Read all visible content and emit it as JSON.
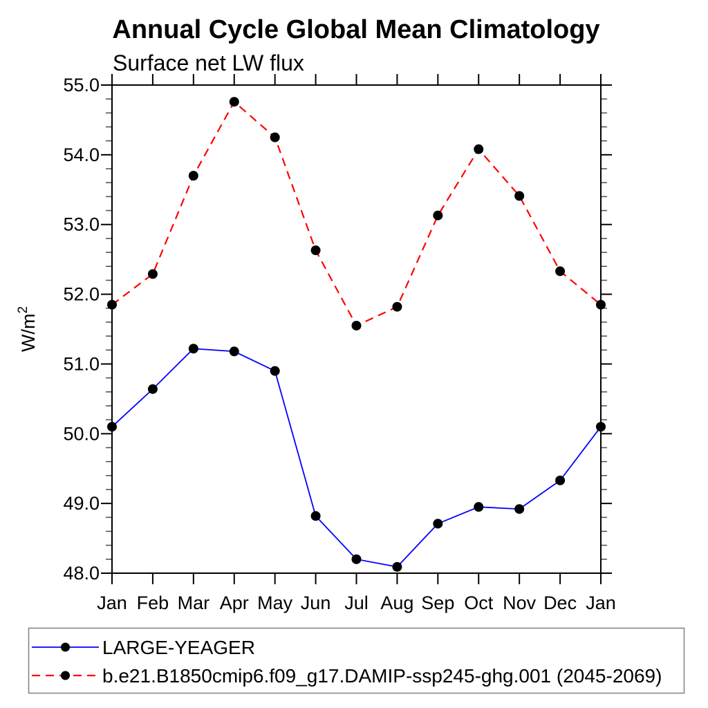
{
  "figure": {
    "background": "#ffffff"
  },
  "chart_data": {
    "type": "line",
    "title": "Annual Cycle Global Mean Climatology",
    "subtitle": "Surface net LW flux",
    "ylabel": "W/m²",
    "x_categories": [
      "Jan",
      "Feb",
      "Mar",
      "Apr",
      "May",
      "Jun",
      "Jul",
      "Aug",
      "Sep",
      "Oct",
      "Nov",
      "Dec",
      "Jan"
    ],
    "ylim": [
      48.0,
      55.0
    ],
    "y_major_step": 1.0,
    "y_minor_step": 0.2,
    "y_tick_labels": [
      "48.0",
      "49.0",
      "50.0",
      "51.0",
      "52.0",
      "53.0",
      "54.0",
      "55.0"
    ],
    "grid": false,
    "legend_position": "bottom-left",
    "axis_color": "#000000",
    "minor_tick_color": "#555555",
    "series": [
      {
        "name": "LARGE-YEAGER",
        "color": "#0000ff",
        "line_style": "solid",
        "marker": "filled-circle",
        "marker_color": "#000000",
        "values": [
          50.1,
          50.64,
          51.22,
          51.18,
          50.9,
          48.82,
          48.2,
          48.09,
          48.71,
          48.95,
          48.92,
          49.33,
          50.1
        ]
      },
      {
        "name": "b.e21.B1850cmip6.f09_g17.DAMIP-ssp245-ghg.001 (2045-2069)",
        "color": "#ff0000",
        "line_style": "dashed",
        "marker": "filled-circle",
        "marker_color": "#000000",
        "values": [
          51.85,
          52.29,
          53.7,
          54.76,
          54.25,
          52.63,
          51.55,
          51.82,
          53.13,
          54.08,
          53.41,
          52.33,
          51.85
        ]
      }
    ]
  }
}
